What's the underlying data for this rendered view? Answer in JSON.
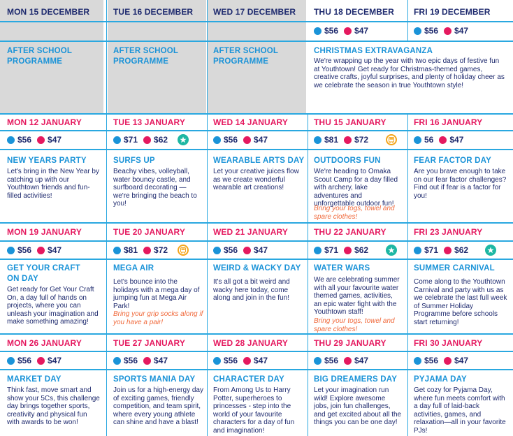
{
  "colors": {
    "navy": "#1e2a6e",
    "pink": "#e5195f",
    "blue": "#1a93d8",
    "grid": "#2aa8e0",
    "shade": "#d9d9d9",
    "teal": "#1eb7a3",
    "orange": "#f06a3c",
    "amber": "#f4a51c"
  },
  "week1": {
    "d1": {
      "date": "MON 15 DECEMBER",
      "title": "AFTER SCHOOL PROGRAMME"
    },
    "d2": {
      "date": "TUE 16 DECEMBER",
      "title": "AFTER SCHOOL PROGRAMME"
    },
    "d3": {
      "date": "WED 17 DECEMBER",
      "title": "AFTER SCHOOL PROGRAMME"
    },
    "d4": {
      "date": "THU 18 DECEMBER",
      "p1": "$56",
      "p2": "$47"
    },
    "d5": {
      "date": "FRI 19 DECEMBER",
      "p1": "$56",
      "p2": "$47"
    },
    "special": {
      "title": "CHRISTMAS EXTRAVAGANZA",
      "desc": "We're wrapping up the year with two epic days of festive fun at Youthtown! Get ready for Christmas-themed games, creative crafts, joyful surprises, and plenty of holiday cheer as we celebrate the season in true Youthtown style!"
    }
  },
  "week2": {
    "d1": {
      "date": "MON 12 JANUARY",
      "p1": "$56",
      "p2": "$47",
      "title": "NEW YEARS PARTY",
      "desc": "Let's bring in the New Year by catching up with our Youthtown friends and fun-filled activities!"
    },
    "d2": {
      "date": "TUE 13 JANUARY",
      "p1": "$71",
      "p2": "$62",
      "icon": "star-icon",
      "title": "SURFS UP",
      "desc": "Beachy vibes, volleyball, water bouncy castle, and surfboard decorating — we're bringing the beach to you!"
    },
    "d3": {
      "date": "WED 14 JANUARY",
      "p1": "$56",
      "p2": "$47",
      "title": "WEARABLE ARTS DAY",
      "desc": "Let your creative juices flow as we create wonderful wearable art creations!"
    },
    "d4": {
      "date": "THU 15 JANUARY",
      "p1": "$81",
      "p2": "$72",
      "icon": "bus-icon",
      "title": "OUTDOORS FUN",
      "desc": "We're heading to Omaka Scout Camp for a day filled with archery, lake adventures and unforgettable outdoor fun!",
      "note": "Bring your togs, towel and spare clothes!"
    },
    "d5": {
      "date": "FRI 16 JANUARY",
      "p1": "56",
      "p2": "$47",
      "title": "FEAR FACTOR DAY",
      "desc": "Are you brave enough to take on our fear factor challenges? Find out if fear is a factor for you!"
    }
  },
  "week3": {
    "d1": {
      "date": "MON 19 JANUARY",
      "p1": "$56",
      "p2": "$47",
      "title": "GET YOUR CRAFT ON DAY",
      "desc": "Get ready for Get Your Craft On, a day full of hands on projects, where you can unleash your imagination and make something amazing!"
    },
    "d2": {
      "date": "TUE 20 JANUARY",
      "p1": "$81",
      "p2": "$72",
      "icon": "bus-icon",
      "title": "MEGA AIR",
      "desc": "Let's bounce into the holidays with a mega day of jumping fun at Mega Air Park!",
      "note": "Bring your grip socks along if you have a pair!"
    },
    "d3": {
      "date": "WED 21 JANUARY",
      "p1": "$56",
      "p2": "$47",
      "title": "WEIRD & WACKY DAY",
      "desc": "It's all got a bit weird and wacky here today, come along and join in the fun!"
    },
    "d4": {
      "date": "THU 22 JANUARY",
      "p1": "$71",
      "p2": "$62",
      "icon": "star-icon",
      "title": "WATER WARS",
      "desc": "We are celebrating summer with all your favourite water themed games, activities, an epic water fight with the Youthtown staff!",
      "note": "Bring your togs, towel and spare clothes!"
    },
    "d5": {
      "date": "FRI 23 JANUARY",
      "p1": "$71",
      "p2": "$62",
      "icon": "star-icon",
      "title": "SUMMER CARNIVAL",
      "desc": "Come along to the Youthtown Carnival and party with us as we celebrate the last full week of Summer Holiday Programme before schools start returning!"
    }
  },
  "week4": {
    "d1": {
      "date": "MON 26 JANUARY",
      "p1": "$56",
      "p2": "$47",
      "title": "MARKET DAY",
      "desc": "Think fast, move smart and show your 5Cs, this challenge day brings together sports, creativity and physical fun with awards to be won!"
    },
    "d2": {
      "date": "TUE 27 JANUARY",
      "p1": "$56",
      "p2": "$47",
      "title": "SPORTS MANIA DAY",
      "desc": "Join us for a high-energy day of exciting games, friendly competition, and team spirit, where every young athlete can shine and have a blast!"
    },
    "d3": {
      "date": "WED 28 JANUARY",
      "p1": "$56",
      "p2": "$47",
      "title": "CHARACTER DAY",
      "desc": "From Among Us to Harry Potter, superheroes to princesses - step into the world of your favourite characters for a day of fun and imagination!"
    },
    "d4": {
      "date": "THU 29 JANUARY",
      "p1": "$56",
      "p2": "$47",
      "title": "BIG DREAMERS DAY",
      "desc": "Let your imagination run wild! Explore awesome jobs, join fun challenges, and get excited about all the things you can be one day!"
    },
    "d5": {
      "date": "FRI 30 JANUARY",
      "p1": "$56",
      "p2": "$47",
      "title": "PYJAMA DAY",
      "desc": "Get cozy for Pyjama Day, where fun meets comfort with a day full of laid-back activities, games, and relaxation—all in your favorite PJs!"
    }
  }
}
